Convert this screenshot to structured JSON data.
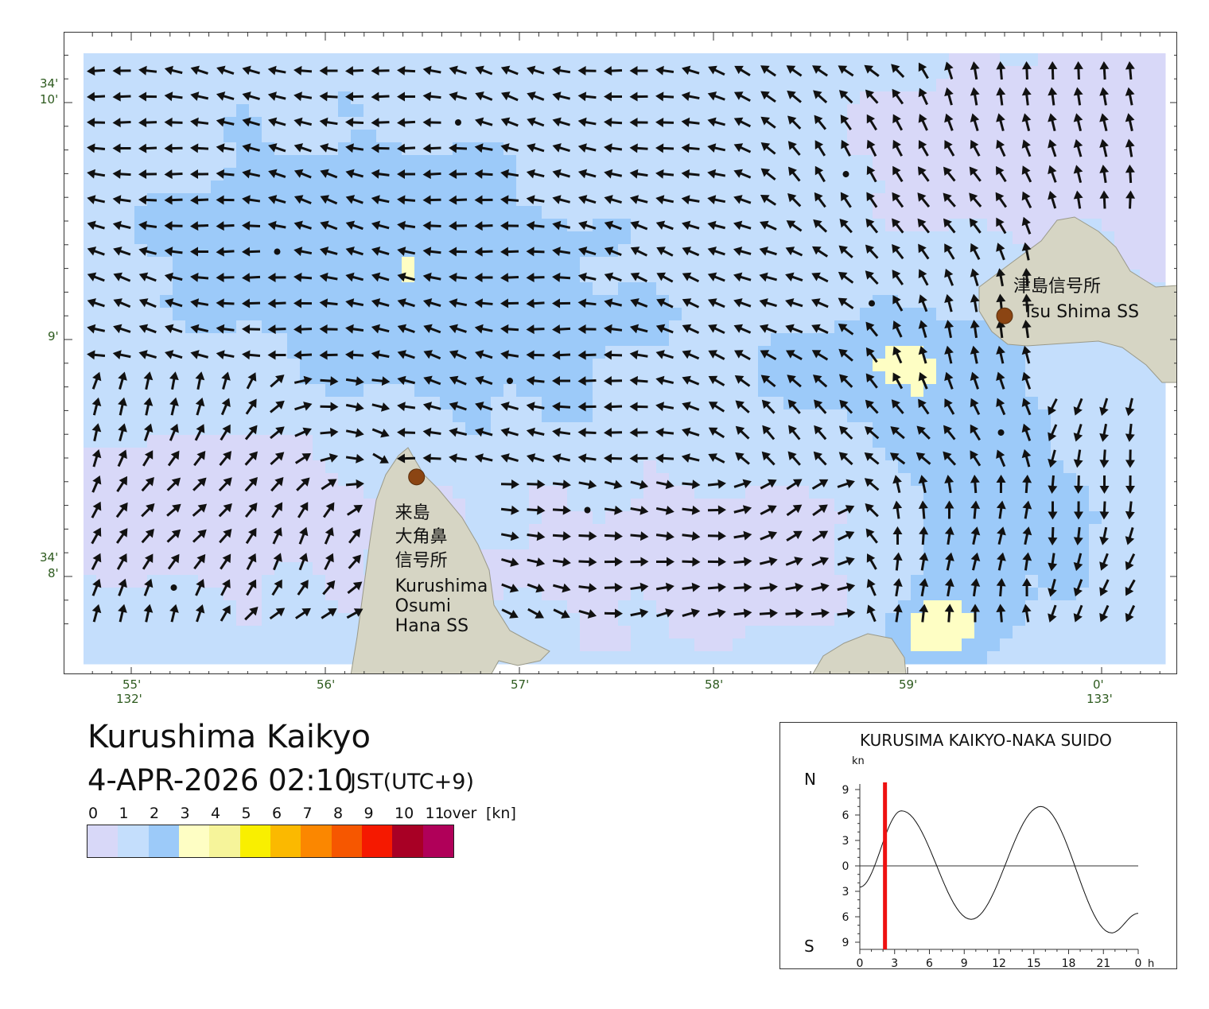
{
  "title": "Kurushima Kaikyo",
  "datetime": "4-APR-2026 02:10",
  "timezone": "JST(UTC+9)",
  "map": {
    "lat_ticks": [
      {
        "deg": "34",
        "min": "10",
        "lat_min": 10
      },
      {
        "deg": "",
        "min": "9",
        "lat_min": 9
      },
      {
        "deg": "34",
        "min": "8",
        "lat_min": 8
      }
    ],
    "lon_ticks": [
      {
        "min": "55",
        "deg": "132",
        "lon_min": 55
      },
      {
        "min": "56",
        "deg": "",
        "lon_min": 56
      },
      {
        "min": "57",
        "deg": "",
        "lon_min": 57
      },
      {
        "min": "58",
        "deg": "",
        "lon_min": 58
      },
      {
        "min": "59",
        "deg": "",
        "lon_min": 59
      },
      {
        "min": "0",
        "deg": "133",
        "lon_min": 60
      }
    ],
    "stations": [
      {
        "name_jp": "津島信号所",
        "name_en": "Tsu Shima SS",
        "lat_min": 9.1,
        "lon_min": 59.5
      },
      {
        "name_jp": "来島\n大角鼻\n信号所",
        "name_en": "Kurushima\nOsumi\nHana SS",
        "lat_min": 8.42,
        "lon_min": 56.47
      }
    ]
  },
  "legend": {
    "labels": [
      "0",
      "1",
      "2",
      "3",
      "4",
      "5",
      "6",
      "7",
      "8",
      "9",
      "10",
      "11",
      "over",
      "[kn]"
    ],
    "colors": [
      "#d8d8f8",
      "#c4defc",
      "#9ccaf9",
      "#fefec4",
      "#f6f49a",
      "#f9ef00",
      "#fbb900",
      "#fb8700",
      "#f65700",
      "#f51900",
      "#a80025",
      "#b00059"
    ],
    "land_color": "#d6d5c4"
  },
  "tide": {
    "title": "KURUSIMA KAIKYO-NAKA SUIDO",
    "unit": "kn",
    "north_label": "N",
    "south_label": "S",
    "y_ticks": [
      "9",
      "6",
      "3",
      "0",
      "3",
      "6",
      "9"
    ],
    "x_ticks": [
      "0",
      "3",
      "6",
      "9",
      "12",
      "15",
      "18",
      "21",
      "0"
    ],
    "x_unit": "h",
    "current_hour": 2.17,
    "current_color": "#ee1111",
    "curve": [
      {
        "h": 0,
        "v": -2.5
      },
      {
        "h": 3.6,
        "v": 6.5
      },
      {
        "h": 9.6,
        "v": -6.3
      },
      {
        "h": 15.6,
        "v": 7.0
      },
      {
        "h": 21.7,
        "v": -7.9
      },
      {
        "h": 24,
        "v": -5.6
      }
    ]
  }
}
